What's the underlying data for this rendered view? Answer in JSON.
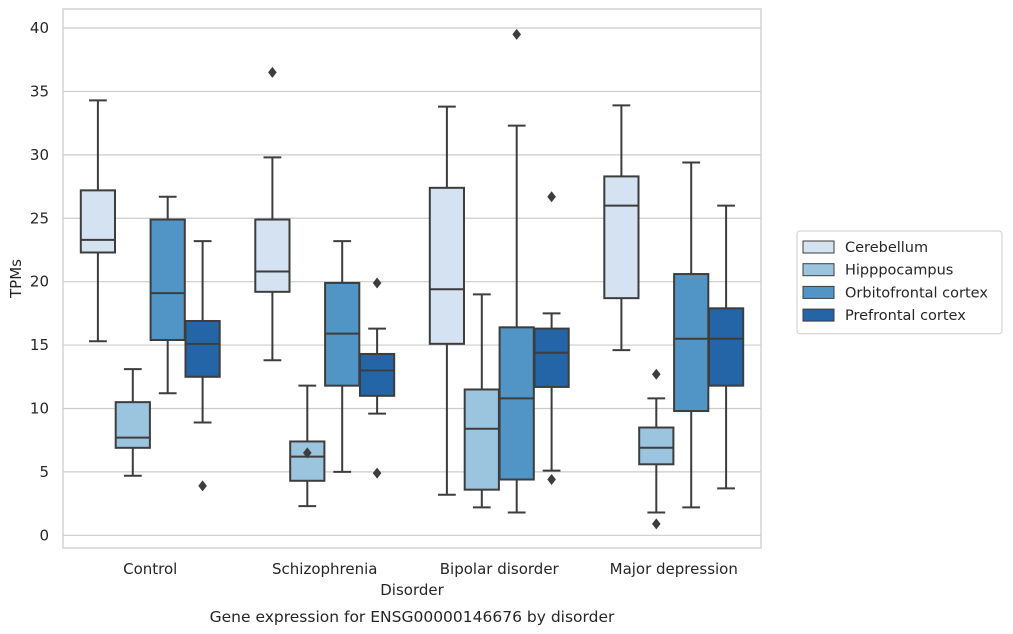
{
  "chart_data": {
    "type": "box",
    "title": "",
    "caption": "Gene expression for ENSG00000146676 by disorder",
    "xlabel": "Disorder",
    "ylabel": "TPMs",
    "ylim": [
      -1,
      41.5
    ],
    "yticks": [
      0,
      5,
      10,
      15,
      20,
      25,
      30,
      35,
      40
    ],
    "grid": "horizontal",
    "legend_position": "right",
    "categories": [
      "Control",
      "Schizophrenia",
      "Bipolar disorder",
      "Major depression"
    ],
    "series": [
      {
        "name": "Cerebellum",
        "color": "#d4e2f1",
        "boxes": [
          {
            "whisker_low": 15.3,
            "q1": 22.3,
            "median": 23.3,
            "q3": 27.2,
            "whisker_high": 34.3,
            "outliers": []
          },
          {
            "whisker_low": 13.8,
            "q1": 19.2,
            "median": 20.8,
            "q3": 24.9,
            "whisker_high": 29.8,
            "outliers": [
              36.5
            ]
          },
          {
            "whisker_low": 3.2,
            "q1": 15.1,
            "median": 19.4,
            "q3": 27.4,
            "whisker_high": 33.8,
            "outliers": []
          },
          {
            "whisker_low": 14.6,
            "q1": 18.7,
            "median": 26.0,
            "q3": 28.3,
            "whisker_high": 33.9,
            "outliers": []
          }
        ]
      },
      {
        "name": "Hipppocampus",
        "color": "#9bc4de",
        "boxes": [
          {
            "whisker_low": 4.7,
            "q1": 6.9,
            "median": 7.7,
            "q3": 10.5,
            "whisker_high": 13.1,
            "outliers": []
          },
          {
            "whisker_low": 2.3,
            "q1": 4.3,
            "median": 6.2,
            "q3": 7.4,
            "whisker_high": 11.8,
            "outliers": [
              6.5
            ]
          },
          {
            "whisker_low": 2.2,
            "q1": 3.6,
            "median": 8.4,
            "q3": 11.5,
            "whisker_high": 19.0,
            "outliers": []
          },
          {
            "whisker_low": 1.8,
            "q1": 5.6,
            "median": 6.9,
            "q3": 8.5,
            "whisker_high": 10.8,
            "outliers": [
              0.9,
              12.7
            ]
          }
        ]
      },
      {
        "name": "Orbitofrontal cortex",
        "color": "#5195c6",
        "boxes": [
          {
            "whisker_low": 11.2,
            "q1": 15.4,
            "median": 19.1,
            "q3": 24.9,
            "whisker_high": 26.7,
            "outliers": []
          },
          {
            "whisker_low": 5.0,
            "q1": 11.8,
            "median": 15.9,
            "q3": 19.9,
            "whisker_high": 23.2,
            "outliers": []
          },
          {
            "whisker_low": 1.8,
            "q1": 4.4,
            "median": 10.8,
            "q3": 16.4,
            "whisker_high": 32.3,
            "outliers": [
              39.5
            ]
          },
          {
            "whisker_low": 2.2,
            "q1": 9.8,
            "median": 15.5,
            "q3": 20.6,
            "whisker_high": 29.4,
            "outliers": []
          }
        ]
      },
      {
        "name": "Prefrontal cortex",
        "color": "#2465a8",
        "boxes": [
          {
            "whisker_low": 8.9,
            "q1": 12.5,
            "median": 15.1,
            "q3": 16.9,
            "whisker_high": 23.2,
            "outliers": [
              3.9
            ]
          },
          {
            "whisker_low": 9.6,
            "q1": 11.0,
            "median": 13.0,
            "q3": 14.3,
            "whisker_high": 16.3,
            "outliers": [
              4.9,
              19.9
            ]
          },
          {
            "whisker_low": 5.1,
            "q1": 11.7,
            "median": 14.4,
            "q3": 16.3,
            "whisker_high": 17.5,
            "outliers": [
              4.4,
              26.7
            ]
          },
          {
            "whisker_low": 3.7,
            "q1": 11.8,
            "median": 15.5,
            "q3": 17.9,
            "whisker_high": 26.0,
            "outliers": []
          }
        ]
      }
    ]
  }
}
